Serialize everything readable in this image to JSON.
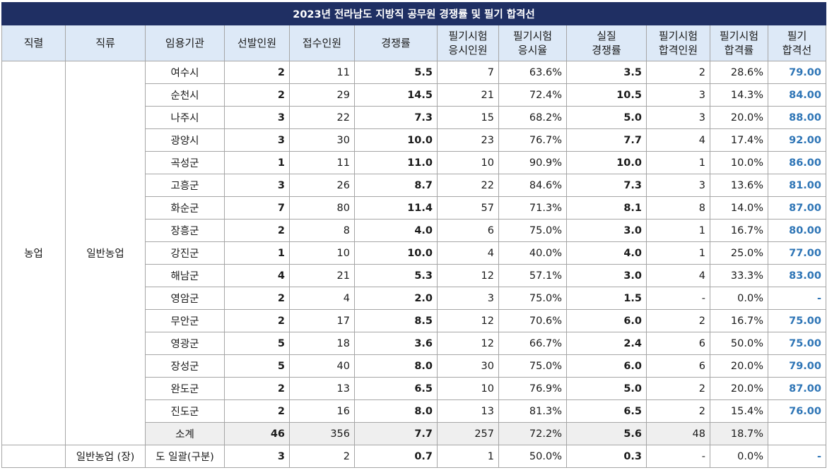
{
  "title": "2023년 전라남도 지방직 공무원 경쟁률 및 필기 합격선",
  "headers": {
    "series": "직렬",
    "category": "직류",
    "agency": "임용기관",
    "selected": "선발인원",
    "applicants": "접수인원",
    "rate": "경쟁률",
    "exam_takers_1": "필기시험",
    "exam_takers_2": "응시인원",
    "exam_ratio_1": "필기시험",
    "exam_ratio_2": "응시율",
    "real_rate_1": "실질",
    "real_rate_2": "경쟁률",
    "passers_1": "필기시험",
    "passers_2": "합격인원",
    "pass_ratio_1": "필기시험",
    "pass_ratio_2": "합격률",
    "cutoff_1": "필기",
    "cutoff_2": "합격선"
  },
  "group": {
    "series": "농업",
    "category": "일반농업"
  },
  "rows": [
    {
      "agency": "여수시",
      "selected": "2",
      "applicants": "11",
      "rate": "5.5",
      "takers": "7",
      "take_ratio": "63.6%",
      "real_rate": "3.5",
      "passers": "2",
      "pass_ratio": "28.6%",
      "cutoff": "79.00"
    },
    {
      "agency": "순천시",
      "selected": "2",
      "applicants": "29",
      "rate": "14.5",
      "takers": "21",
      "take_ratio": "72.4%",
      "real_rate": "10.5",
      "passers": "3",
      "pass_ratio": "14.3%",
      "cutoff": "84.00"
    },
    {
      "agency": "나주시",
      "selected": "3",
      "applicants": "22",
      "rate": "7.3",
      "takers": "15",
      "take_ratio": "68.2%",
      "real_rate": "5.0",
      "passers": "3",
      "pass_ratio": "20.0%",
      "cutoff": "88.00"
    },
    {
      "agency": "광양시",
      "selected": "3",
      "applicants": "30",
      "rate": "10.0",
      "takers": "23",
      "take_ratio": "76.7%",
      "real_rate": "7.7",
      "passers": "4",
      "pass_ratio": "17.4%",
      "cutoff": "92.00"
    },
    {
      "agency": "곡성군",
      "selected": "1",
      "applicants": "11",
      "rate": "11.0",
      "takers": "10",
      "take_ratio": "90.9%",
      "real_rate": "10.0",
      "passers": "1",
      "pass_ratio": "10.0%",
      "cutoff": "86.00"
    },
    {
      "agency": "고흥군",
      "selected": "3",
      "applicants": "26",
      "rate": "8.7",
      "takers": "22",
      "take_ratio": "84.6%",
      "real_rate": "7.3",
      "passers": "3",
      "pass_ratio": "13.6%",
      "cutoff": "81.00"
    },
    {
      "agency": "화순군",
      "selected": "7",
      "applicants": "80",
      "rate": "11.4",
      "takers": "57",
      "take_ratio": "71.3%",
      "real_rate": "8.1",
      "passers": "8",
      "pass_ratio": "14.0%",
      "cutoff": "87.00"
    },
    {
      "agency": "장흥군",
      "selected": "2",
      "applicants": "8",
      "rate": "4.0",
      "takers": "6",
      "take_ratio": "75.0%",
      "real_rate": "3.0",
      "passers": "1",
      "pass_ratio": "16.7%",
      "cutoff": "80.00"
    },
    {
      "agency": "강진군",
      "selected": "1",
      "applicants": "10",
      "rate": "10.0",
      "takers": "4",
      "take_ratio": "40.0%",
      "real_rate": "4.0",
      "passers": "1",
      "pass_ratio": "25.0%",
      "cutoff": "77.00"
    },
    {
      "agency": "해남군",
      "selected": "4",
      "applicants": "21",
      "rate": "5.3",
      "takers": "12",
      "take_ratio": "57.1%",
      "real_rate": "3.0",
      "passers": "4",
      "pass_ratio": "33.3%",
      "cutoff": "83.00"
    },
    {
      "agency": "영암군",
      "selected": "2",
      "applicants": "4",
      "rate": "2.0",
      "takers": "3",
      "take_ratio": "75.0%",
      "real_rate": "1.5",
      "passers": "-",
      "pass_ratio": "0.0%",
      "cutoff": "-"
    },
    {
      "agency": "무안군",
      "selected": "2",
      "applicants": "17",
      "rate": "8.5",
      "takers": "12",
      "take_ratio": "70.6%",
      "real_rate": "6.0",
      "passers": "2",
      "pass_ratio": "16.7%",
      "cutoff": "75.00"
    },
    {
      "agency": "영광군",
      "selected": "5",
      "applicants": "18",
      "rate": "3.6",
      "takers": "12",
      "take_ratio": "66.7%",
      "real_rate": "2.4",
      "passers": "6",
      "pass_ratio": "50.0%",
      "cutoff": "75.00"
    },
    {
      "agency": "장성군",
      "selected": "5",
      "applicants": "40",
      "rate": "8.0",
      "takers": "30",
      "take_ratio": "75.0%",
      "real_rate": "6.0",
      "passers": "6",
      "pass_ratio": "20.0%",
      "cutoff": "79.00"
    },
    {
      "agency": "완도군",
      "selected": "2",
      "applicants": "13",
      "rate": "6.5",
      "takers": "10",
      "take_ratio": "76.9%",
      "real_rate": "5.0",
      "passers": "2",
      "pass_ratio": "20.0%",
      "cutoff": "87.00"
    },
    {
      "agency": "진도군",
      "selected": "2",
      "applicants": "16",
      "rate": "8.0",
      "takers": "13",
      "take_ratio": "81.3%",
      "real_rate": "6.5",
      "passers": "2",
      "pass_ratio": "15.4%",
      "cutoff": "76.00"
    }
  ],
  "subtotal": {
    "agency": "소계",
    "selected": "46",
    "applicants": "356",
    "rate": "7.7",
    "takers": "257",
    "take_ratio": "72.2%",
    "real_rate": "5.6",
    "passers": "48",
    "pass_ratio": "18.7%",
    "cutoff": ""
  },
  "last_row": {
    "category": "일반농업 (장)",
    "agency": "도 일괄(구분)",
    "selected": "3",
    "applicants": "2",
    "rate": "0.7",
    "takers": "1",
    "take_ratio": "50.0%",
    "real_rate": "0.3",
    "passers": "-",
    "pass_ratio": "0.0%",
    "cutoff": "-"
  },
  "colors": {
    "title_bg": "#1f2f63",
    "header_bg": "#dde9f7",
    "cutoff_text": "#2e75b6",
    "subtotal_bg": "#efefef"
  }
}
